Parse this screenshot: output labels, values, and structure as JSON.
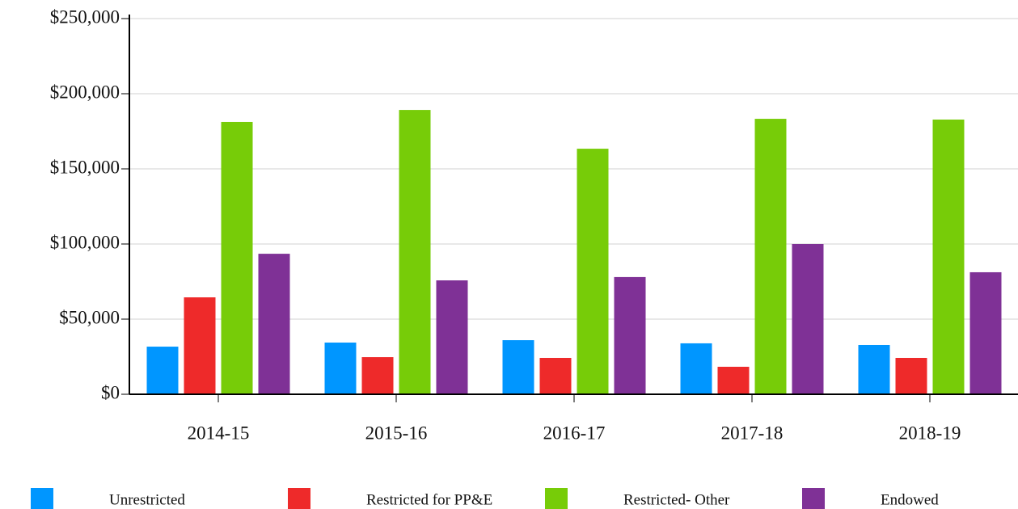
{
  "chart_data": {
    "type": "bar",
    "categories": [
      "2014-15",
      "2015-16",
      "2016-17",
      "2017-18",
      "2018-19"
    ],
    "series": [
      {
        "name": "Unrestricted",
        "color": "#0096ff",
        "values": [
          31700,
          34400,
          36000,
          33900,
          32800
        ]
      },
      {
        "name": "Restricted for PP&E",
        "color": "#ee2a2a",
        "values": [
          64500,
          24700,
          24200,
          18300,
          24200
        ]
      },
      {
        "name": "Restricted- Other",
        "color": "#77cc08",
        "values": [
          181200,
          189200,
          163400,
          183300,
          182800
        ]
      },
      {
        "name": "Endowed",
        "color": "#7f3196",
        "values": [
          93500,
          75800,
          78000,
          100000,
          81200
        ]
      }
    ],
    "ylim": [
      0,
      250000
    ],
    "yticks": [
      {
        "value": 0,
        "label": "$0"
      },
      {
        "value": 50000,
        "label": "$50,000"
      },
      {
        "value": 100000,
        "label": "$100,000"
      },
      {
        "value": 150000,
        "label": "$150,000"
      },
      {
        "value": 200000,
        "label": "$200,000"
      },
      {
        "value": 250000,
        "label": "$250,000"
      }
    ],
    "grid": true,
    "legend": "bottom"
  }
}
